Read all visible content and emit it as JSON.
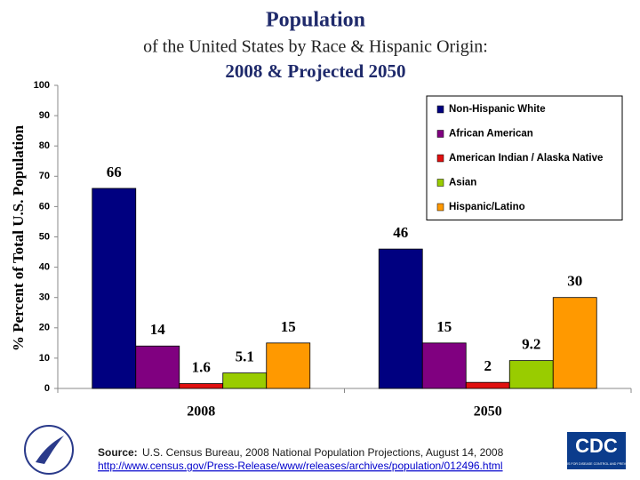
{
  "chart_data": {
    "type": "bar",
    "title": [
      "Population",
      "of the United States by Race & Hispanic Origin:",
      "2008 & Projected 2050"
    ],
    "ylabel": "% Percent of Total U.S. Population",
    "categories": [
      "2008",
      "2050"
    ],
    "series": [
      {
        "name": "Non-Hispanic White",
        "color": "#000080",
        "values": [
          66,
          46
        ]
      },
      {
        "name": "African American",
        "color": "#800080",
        "values": [
          14,
          15
        ]
      },
      {
        "name": "American Indian / Alaska Native",
        "color": "#e01010",
        "values": [
          1.6,
          2
        ]
      },
      {
        "name": "Asian",
        "color": "#99cc00",
        "values": [
          5.1,
          9.2
        ]
      },
      {
        "name": "Hispanic/Latino",
        "color": "#ff9900",
        "values": [
          15,
          30
        ]
      }
    ],
    "ylim": [
      0,
      100
    ],
    "yticks": [
      0,
      10,
      20,
      30,
      40,
      50,
      60,
      70,
      80,
      90,
      100
    ],
    "grid": false,
    "legend": "upper right"
  },
  "source": {
    "label": "Source:",
    "text": "U.S. Census Bureau,  2008 National Population Projections, August 14, 2008",
    "url": "http://www.census.gov/Press-Release/www/releases/archives/population/012496.html"
  },
  "logo": {
    "name": "CDC",
    "subtitle": "CENTERS FOR DISEASE CONTROL AND PREVENTION"
  }
}
